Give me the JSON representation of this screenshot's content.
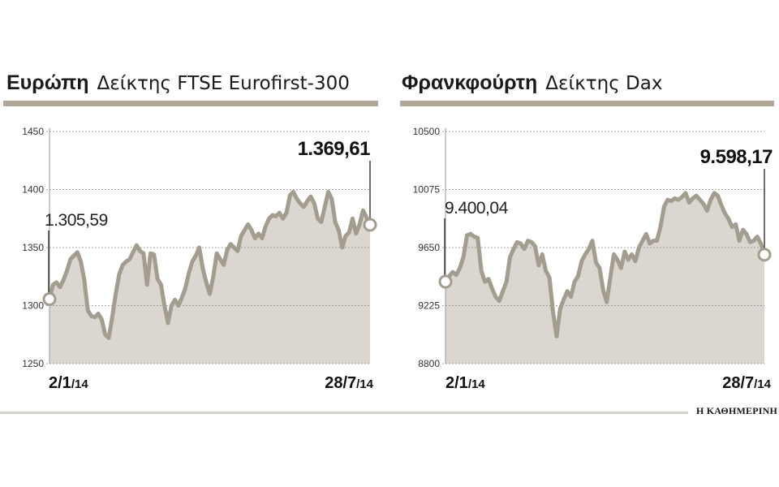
{
  "panels": [
    {
      "region": "Ευρώπη",
      "index_name": "Δείκτης FTSE Eurofirst-300",
      "start_label": "1.305,59",
      "end_label": "1.369,61",
      "date_start": "2/1",
      "date_start_year": "/14",
      "date_end": "28/7",
      "date_end_year": "/14"
    },
    {
      "region": "Φρανκφούρτη",
      "index_name": "Δείκτης Dax",
      "start_label": "9.400,04",
      "end_label": "9.598,17",
      "date_start": "2/1",
      "date_start_year": "/14",
      "date_end": "28/7",
      "date_end_year": "/14"
    }
  ],
  "source": "Η ΚΑΘΗΜΕΡΙΝΗ",
  "colors": {
    "line": "#a39d90",
    "fill": "#dbd6d0",
    "title_rule": "#b2a698",
    "grid": "#888888"
  },
  "chart_data": [
    {
      "type": "area",
      "title": "Ευρώπη Δείκτης FTSE Eurofirst-300",
      "x_start": "2/1/14",
      "x_end": "28/7/14",
      "ylim": [
        1250,
        1450
      ],
      "yticks": [
        1250,
        1300,
        1350,
        1400,
        1450
      ],
      "grid": true,
      "values": [
        1305.59,
        1318,
        1320,
        1316,
        1322,
        1330,
        1340,
        1343,
        1346,
        1338,
        1322,
        1296,
        1291,
        1290,
        1293,
        1288,
        1275,
        1272,
        1290,
        1310,
        1327,
        1335,
        1338,
        1340,
        1346,
        1352,
        1347,
        1345,
        1318,
        1345,
        1344,
        1323,
        1318,
        1300,
        1285,
        1300,
        1305,
        1300,
        1307,
        1315,
        1328,
        1338,
        1343,
        1350,
        1332,
        1320,
        1310,
        1325,
        1345,
        1340,
        1335,
        1348,
        1353,
        1350,
        1347,
        1360,
        1365,
        1370,
        1365,
        1358,
        1362,
        1358,
        1368,
        1375,
        1378,
        1377,
        1380,
        1375,
        1380,
        1395,
        1398,
        1392,
        1388,
        1385,
        1390,
        1394,
        1388,
        1375,
        1372,
        1385,
        1398,
        1392,
        1372,
        1365,
        1350,
        1360,
        1363,
        1375,
        1362,
        1370,
        1382,
        1376,
        1369.61
      ]
    },
    {
      "type": "area",
      "title": "Φρανκφούρτη Δείκτης Dax",
      "x_start": "2/1/14",
      "x_end": "28/7/14",
      "ylim": [
        8800,
        10500
      ],
      "yticks": [
        8800,
        9225,
        9650,
        10075,
        10500
      ],
      "grid": true,
      "values": [
        9400.04,
        9440,
        9470,
        9450,
        9500,
        9580,
        9740,
        9750,
        9730,
        9720,
        9480,
        9400,
        9420,
        9350,
        9290,
        9260,
        9330,
        9400,
        9580,
        9640,
        9690,
        9680,
        9640,
        9700,
        9690,
        9660,
        9520,
        9600,
        9480,
        9430,
        9180,
        9000,
        9200,
        9270,
        9330,
        9290,
        9400,
        9440,
        9550,
        9600,
        9640,
        9700,
        9540,
        9500,
        9340,
        9250,
        9430,
        9600,
        9560,
        9500,
        9620,
        9560,
        9600,
        9550,
        9650,
        9700,
        9750,
        9680,
        9700,
        9700,
        9800,
        9950,
        10000,
        9990,
        10010,
        10000,
        10020,
        10050,
        9980,
        10010,
        10030,
        10000,
        9970,
        9920,
        10000,
        10050,
        10030,
        9960,
        9900,
        9860,
        9800,
        9820,
        9700,
        9780,
        9750,
        9690,
        9700,
        9730,
        9680,
        9598.17
      ]
    }
  ]
}
